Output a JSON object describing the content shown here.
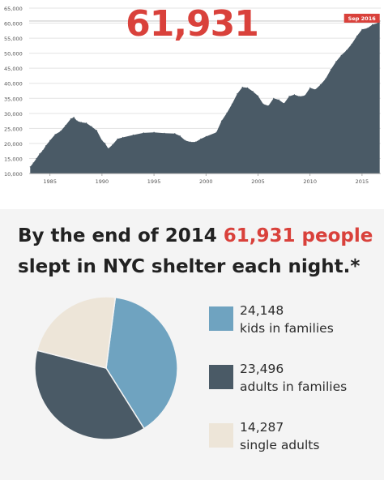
{
  "headline_number": "61,931",
  "headline": {
    "part1": "By the end of 2014 ",
    "highlight": "61,931 people",
    "part2": " slept in NYC shelter each night.*"
  },
  "colors": {
    "accent": "#d9413b",
    "area": "#4a5a66",
    "kids": "#6fa3c0",
    "adults_families": "#4a5a66",
    "single": "#ede5d8"
  },
  "chart_data": [
    {
      "type": "area",
      "title": "",
      "xlabel": "",
      "ylabel": "",
      "xlim": [
        1983.0,
        2016.8
      ],
      "ylim": [
        10000,
        65000
      ],
      "yticks": [
        10000,
        15000,
        20000,
        25000,
        30000,
        35000,
        40000,
        45000,
        50000,
        55000,
        60000,
        65000
      ],
      "ytick_labels": [
        "10,000",
        "15,000",
        "20,000",
        "25,000",
        "30,000",
        "35,000",
        "40,000",
        "45,000",
        "50,000",
        "55,000",
        "60,000",
        "65,000"
      ],
      "xticks": [
        1985,
        1990,
        1995,
        2000,
        2005,
        2010,
        2015
      ],
      "xtick_labels": [
        "1985",
        "1990",
        "1995",
        "2000",
        "2005",
        "2010",
        "2015"
      ],
      "annotation": {
        "label": "Sep 2016",
        "x": 2016.7,
        "y": 60700
      },
      "grid": true,
      "x": [
        1983.1,
        1983.4,
        1983.7,
        1984.0,
        1984.3,
        1984.6,
        1985.0,
        1985.5,
        1986.0,
        1986.5,
        1987.0,
        1987.3,
        1987.6,
        1988.0,
        1988.5,
        1989.0,
        1989.5,
        1990.0,
        1990.3,
        1990.6,
        1991.0,
        1991.5,
        1992.0,
        1993.0,
        1994.0,
        1995.0,
        1996.0,
        1997.0,
        1997.5,
        1998.0,
        1998.5,
        1999.0,
        1999.5,
        2000.0,
        2001.0,
        2001.5,
        2002.0,
        2002.5,
        2003.0,
        2003.5,
        2004.0,
        2004.5,
        2005.0,
        2005.5,
        2006.0,
        2006.5,
        2007.0,
        2007.5,
        2008.0,
        2008.5,
        2009.0,
        2009.5,
        2010.0,
        2010.5,
        2011.0,
        2011.5,
        2012.0,
        2012.5,
        2013.0,
        2013.5,
        2014.0,
        2014.5,
        2015.0,
        2015.5,
        2016.0,
        2016.5,
        2016.7
      ],
      "y": [
        12200,
        13500,
        15000,
        16500,
        17600,
        19200,
        21000,
        23000,
        24000,
        26000,
        28200,
        28700,
        27500,
        27000,
        26800,
        25600,
        24300,
        21000,
        20000,
        18300,
        19500,
        21500,
        22000,
        22800,
        23500,
        23700,
        23400,
        23300,
        22500,
        21000,
        20500,
        20500,
        21500,
        22300,
        23700,
        27500,
        30100,
        33100,
        36500,
        38700,
        38500,
        37300,
        35800,
        33100,
        32500,
        35000,
        34500,
        33300,
        35700,
        36200,
        35600,
        35900,
        38500,
        37900,
        39500,
        41500,
        44600,
        47200,
        49300,
        50900,
        53000,
        55700,
        57900,
        58300,
        59500,
        60000,
        60700
      ]
    },
    {
      "type": "pie",
      "title": "",
      "total": 61931,
      "slices": [
        {
          "label": "kids in families",
          "value": 24148,
          "value_label": "24,148",
          "color": "#6fa3c0"
        },
        {
          "label": "adults in families",
          "value": 23496,
          "value_label": "23,496",
          "color": "#4a5a66"
        },
        {
          "label": "single adults",
          "value": 14287,
          "value_label": "14,287",
          "color": "#ede5d8"
        }
      ],
      "legend_placement": "right"
    }
  ]
}
